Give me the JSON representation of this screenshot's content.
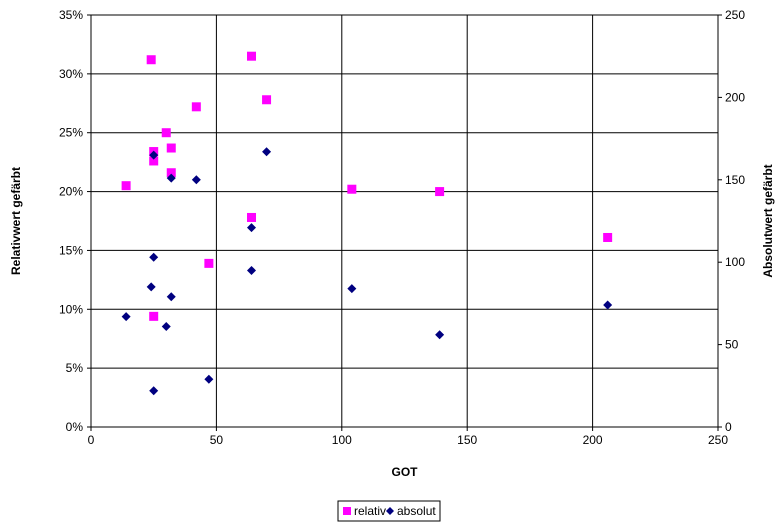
{
  "chart_data": {
    "type": "scatter",
    "xlabel": "GOT",
    "ylabel_left": "Relativwert gefärbt",
    "ylabel_right": "Absolutwert gefärbt",
    "xlim": [
      0,
      250
    ],
    "ylim_left": [
      0,
      35
    ],
    "ylim_right": [
      0,
      250
    ],
    "x_ticks": [
      "0",
      "50",
      "100",
      "150",
      "200",
      "250"
    ],
    "y_left_ticks": [
      "0%",
      "5%",
      "10%",
      "15%",
      "20%",
      "25%",
      "30%",
      "35%"
    ],
    "y_right_ticks": [
      "0",
      "50",
      "100",
      "150",
      "200",
      "250"
    ],
    "grid": true,
    "legend_position": "bottom",
    "series": [
      {
        "name": "relativ",
        "axis": "left",
        "marker": "square",
        "color": "#ff00ff",
        "points": [
          {
            "x": 14,
            "y": 20.5
          },
          {
            "x": 24,
            "y": 31.2
          },
          {
            "x": 25,
            "y": 23.4
          },
          {
            "x": 25,
            "y": 22.6
          },
          {
            "x": 25,
            "y": 9.4
          },
          {
            "x": 30,
            "y": 25.0
          },
          {
            "x": 32,
            "y": 23.7
          },
          {
            "x": 32,
            "y": 21.6
          },
          {
            "x": 42,
            "y": 27.2
          },
          {
            "x": 47,
            "y": 13.9
          },
          {
            "x": 64,
            "y": 31.5
          },
          {
            "x": 64,
            "y": 17.8
          },
          {
            "x": 70,
            "y": 27.8
          },
          {
            "x": 104,
            "y": 20.2
          },
          {
            "x": 139,
            "y": 20.0
          },
          {
            "x": 206,
            "y": 16.1
          }
        ]
      },
      {
        "name": "absolut",
        "axis": "right",
        "marker": "diamond",
        "color": "#000080",
        "points": [
          {
            "x": 14,
            "y": 67
          },
          {
            "x": 24,
            "y": 85
          },
          {
            "x": 25,
            "y": 103
          },
          {
            "x": 25,
            "y": 165
          },
          {
            "x": 25,
            "y": 22
          },
          {
            "x": 30,
            "y": 61
          },
          {
            "x": 32,
            "y": 151
          },
          {
            "x": 32,
            "y": 79
          },
          {
            "x": 42,
            "y": 150
          },
          {
            "x": 47,
            "y": 29
          },
          {
            "x": 64,
            "y": 121
          },
          {
            "x": 64,
            "y": 95
          },
          {
            "x": 70,
            "y": 167
          },
          {
            "x": 104,
            "y": 84
          },
          {
            "x": 139,
            "y": 56
          },
          {
            "x": 206,
            "y": 74
          }
        ]
      }
    ]
  }
}
